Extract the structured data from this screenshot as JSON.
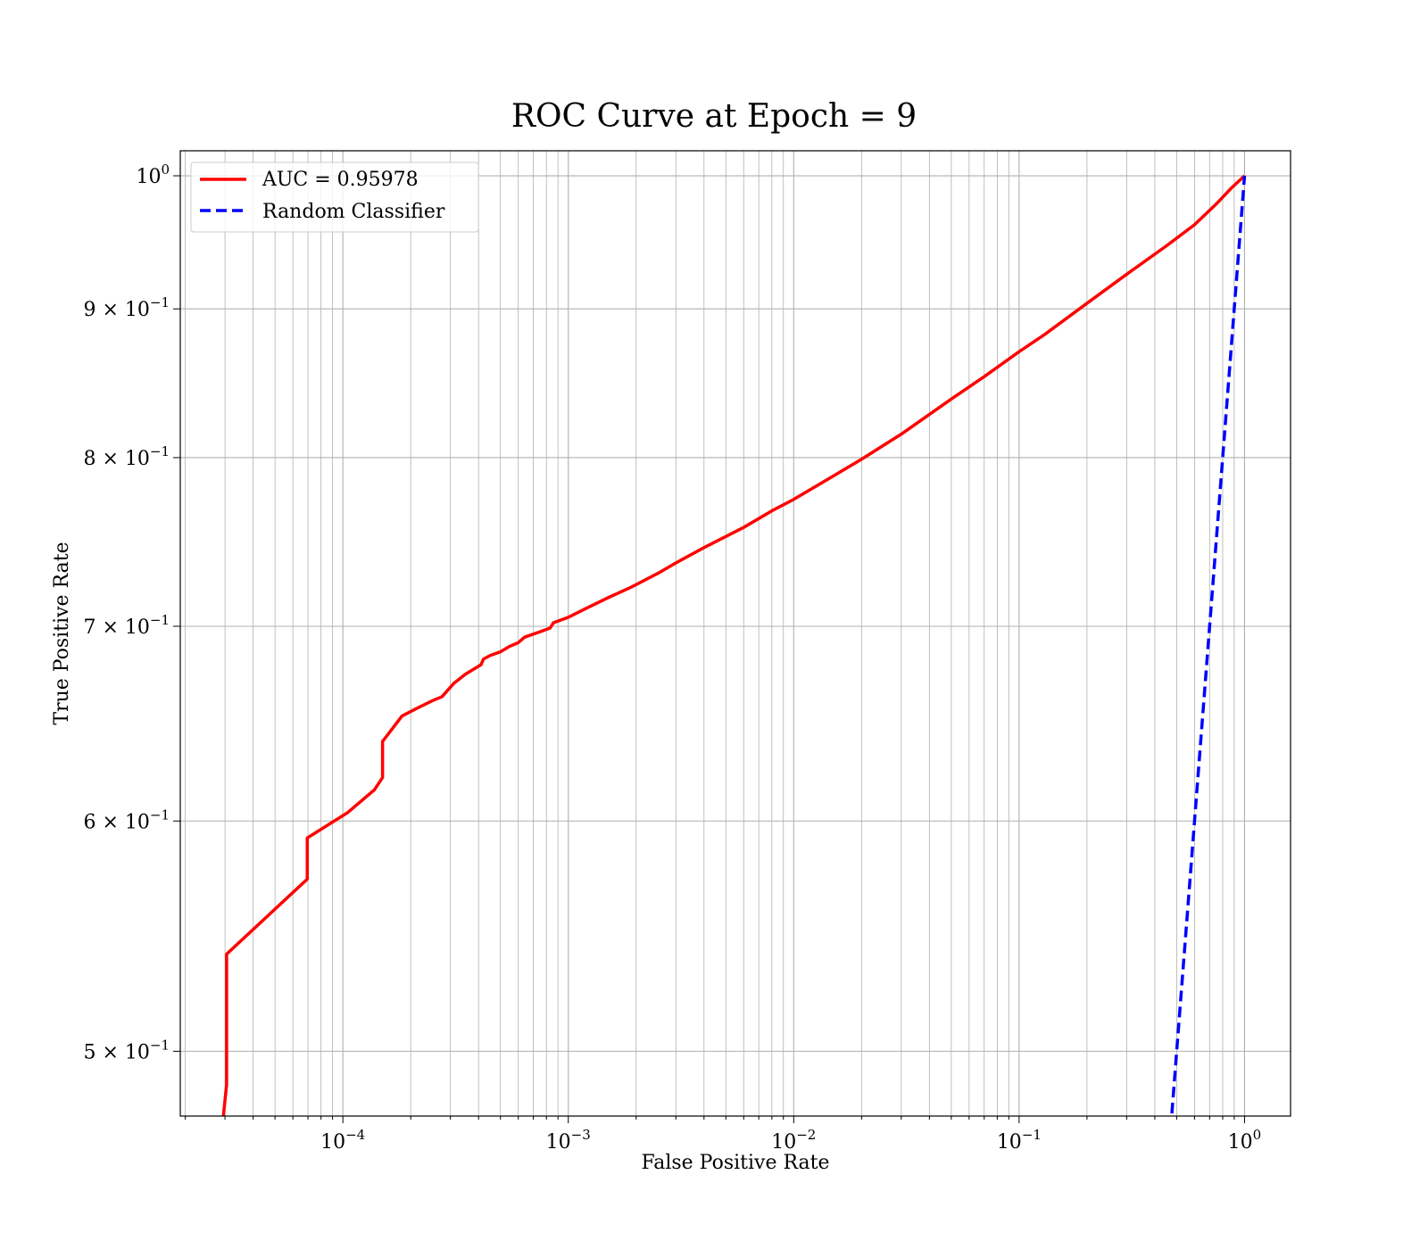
{
  "chart_data": {
    "type": "line",
    "title": "ROC Curve at Epoch = 9",
    "xlabel": "False Positive Rate",
    "ylabel": "True Positive Rate",
    "xscale": "log",
    "yscale": "log",
    "xlim": [
      1.9e-05,
      1.6
    ],
    "ylim": [
      0.475,
      1.02
    ],
    "grid": true,
    "grid_minor": true,
    "legend_position": "upper-left",
    "x_major_ticks": [
      {
        "value": 0.0001,
        "base": "10",
        "exp": "−4"
      },
      {
        "value": 0.001,
        "base": "10",
        "exp": "−3"
      },
      {
        "value": 0.01,
        "base": "10",
        "exp": "−2"
      },
      {
        "value": 0.1,
        "base": "10",
        "exp": "−1"
      },
      {
        "value": 1,
        "base": "10",
        "exp": "0"
      }
    ],
    "y_major_ticks": [
      {
        "value": 0.5,
        "base": "5 × 10",
        "exp": "−1"
      },
      {
        "value": 0.6,
        "base": "6 × 10",
        "exp": "−1"
      },
      {
        "value": 0.7,
        "base": "7 × 10",
        "exp": "−1"
      },
      {
        "value": 0.8,
        "base": "8 × 10",
        "exp": "−1"
      },
      {
        "value": 0.9,
        "base": "9 × 10",
        "exp": "−1"
      },
      {
        "value": 1.0,
        "base": "10",
        "exp": "0"
      }
    ],
    "series": [
      {
        "name": "AUC = 0.95978",
        "color": "#ff0000",
        "style": "solid",
        "points": [
          [
            2.95e-05,
            0.475
          ],
          [
            3.05e-05,
            0.487
          ],
          [
            3.05e-05,
            0.54
          ],
          [
            6.95e-05,
            0.573
          ],
          [
            6.95e-05,
            0.592
          ],
          [
            0.000105,
            0.604
          ],
          [
            0.000138,
            0.615
          ],
          [
            0.00015,
            0.621
          ],
          [
            0.00015,
            0.639
          ],
          [
            0.000183,
            0.652
          ],
          [
            0.000213,
            0.656
          ],
          [
            0.00025,
            0.66
          ],
          [
            0.000275,
            0.662
          ],
          [
            0.00031,
            0.669
          ],
          [
            0.00035,
            0.674
          ],
          [
            0.00041,
            0.679
          ],
          [
            0.00042,
            0.682
          ],
          [
            0.00045,
            0.684
          ],
          [
            0.0005,
            0.686
          ],
          [
            0.00055,
            0.689
          ],
          [
            0.0006,
            0.691
          ],
          [
            0.00064,
            0.694
          ],
          [
            0.00075,
            0.697
          ],
          [
            0.00083,
            0.699
          ],
          [
            0.00086,
            0.702
          ],
          [
            0.001,
            0.705
          ],
          [
            0.0012,
            0.71
          ],
          [
            0.0015,
            0.716
          ],
          [
            0.0019,
            0.722
          ],
          [
            0.0025,
            0.73
          ],
          [
            0.003,
            0.736
          ],
          [
            0.004,
            0.745
          ],
          [
            0.006,
            0.757
          ],
          [
            0.008,
            0.767
          ],
          [
            0.01,
            0.774
          ],
          [
            0.014,
            0.786
          ],
          [
            0.02,
            0.799
          ],
          [
            0.03,
            0.815
          ],
          [
            0.05,
            0.838
          ],
          [
            0.07,
            0.853
          ],
          [
            0.1,
            0.87
          ],
          [
            0.13,
            0.882
          ],
          [
            0.2,
            0.904
          ],
          [
            0.3,
            0.925
          ],
          [
            0.45,
            0.946
          ],
          [
            0.6,
            0.962
          ],
          [
            0.75,
            0.978
          ],
          [
            0.87,
            0.99
          ],
          [
            1.0,
            1.0
          ]
        ]
      },
      {
        "name": "Random Classifier",
        "color": "#0000ff",
        "style": "dashed",
        "points": [
          [
            0.47,
            0.47
          ],
          [
            0.55,
            0.55
          ],
          [
            0.65,
            0.65
          ],
          [
            0.75,
            0.75
          ],
          [
            0.85,
            0.85
          ],
          [
            0.95,
            0.95
          ],
          [
            1.0,
            1.0
          ]
        ]
      }
    ]
  }
}
